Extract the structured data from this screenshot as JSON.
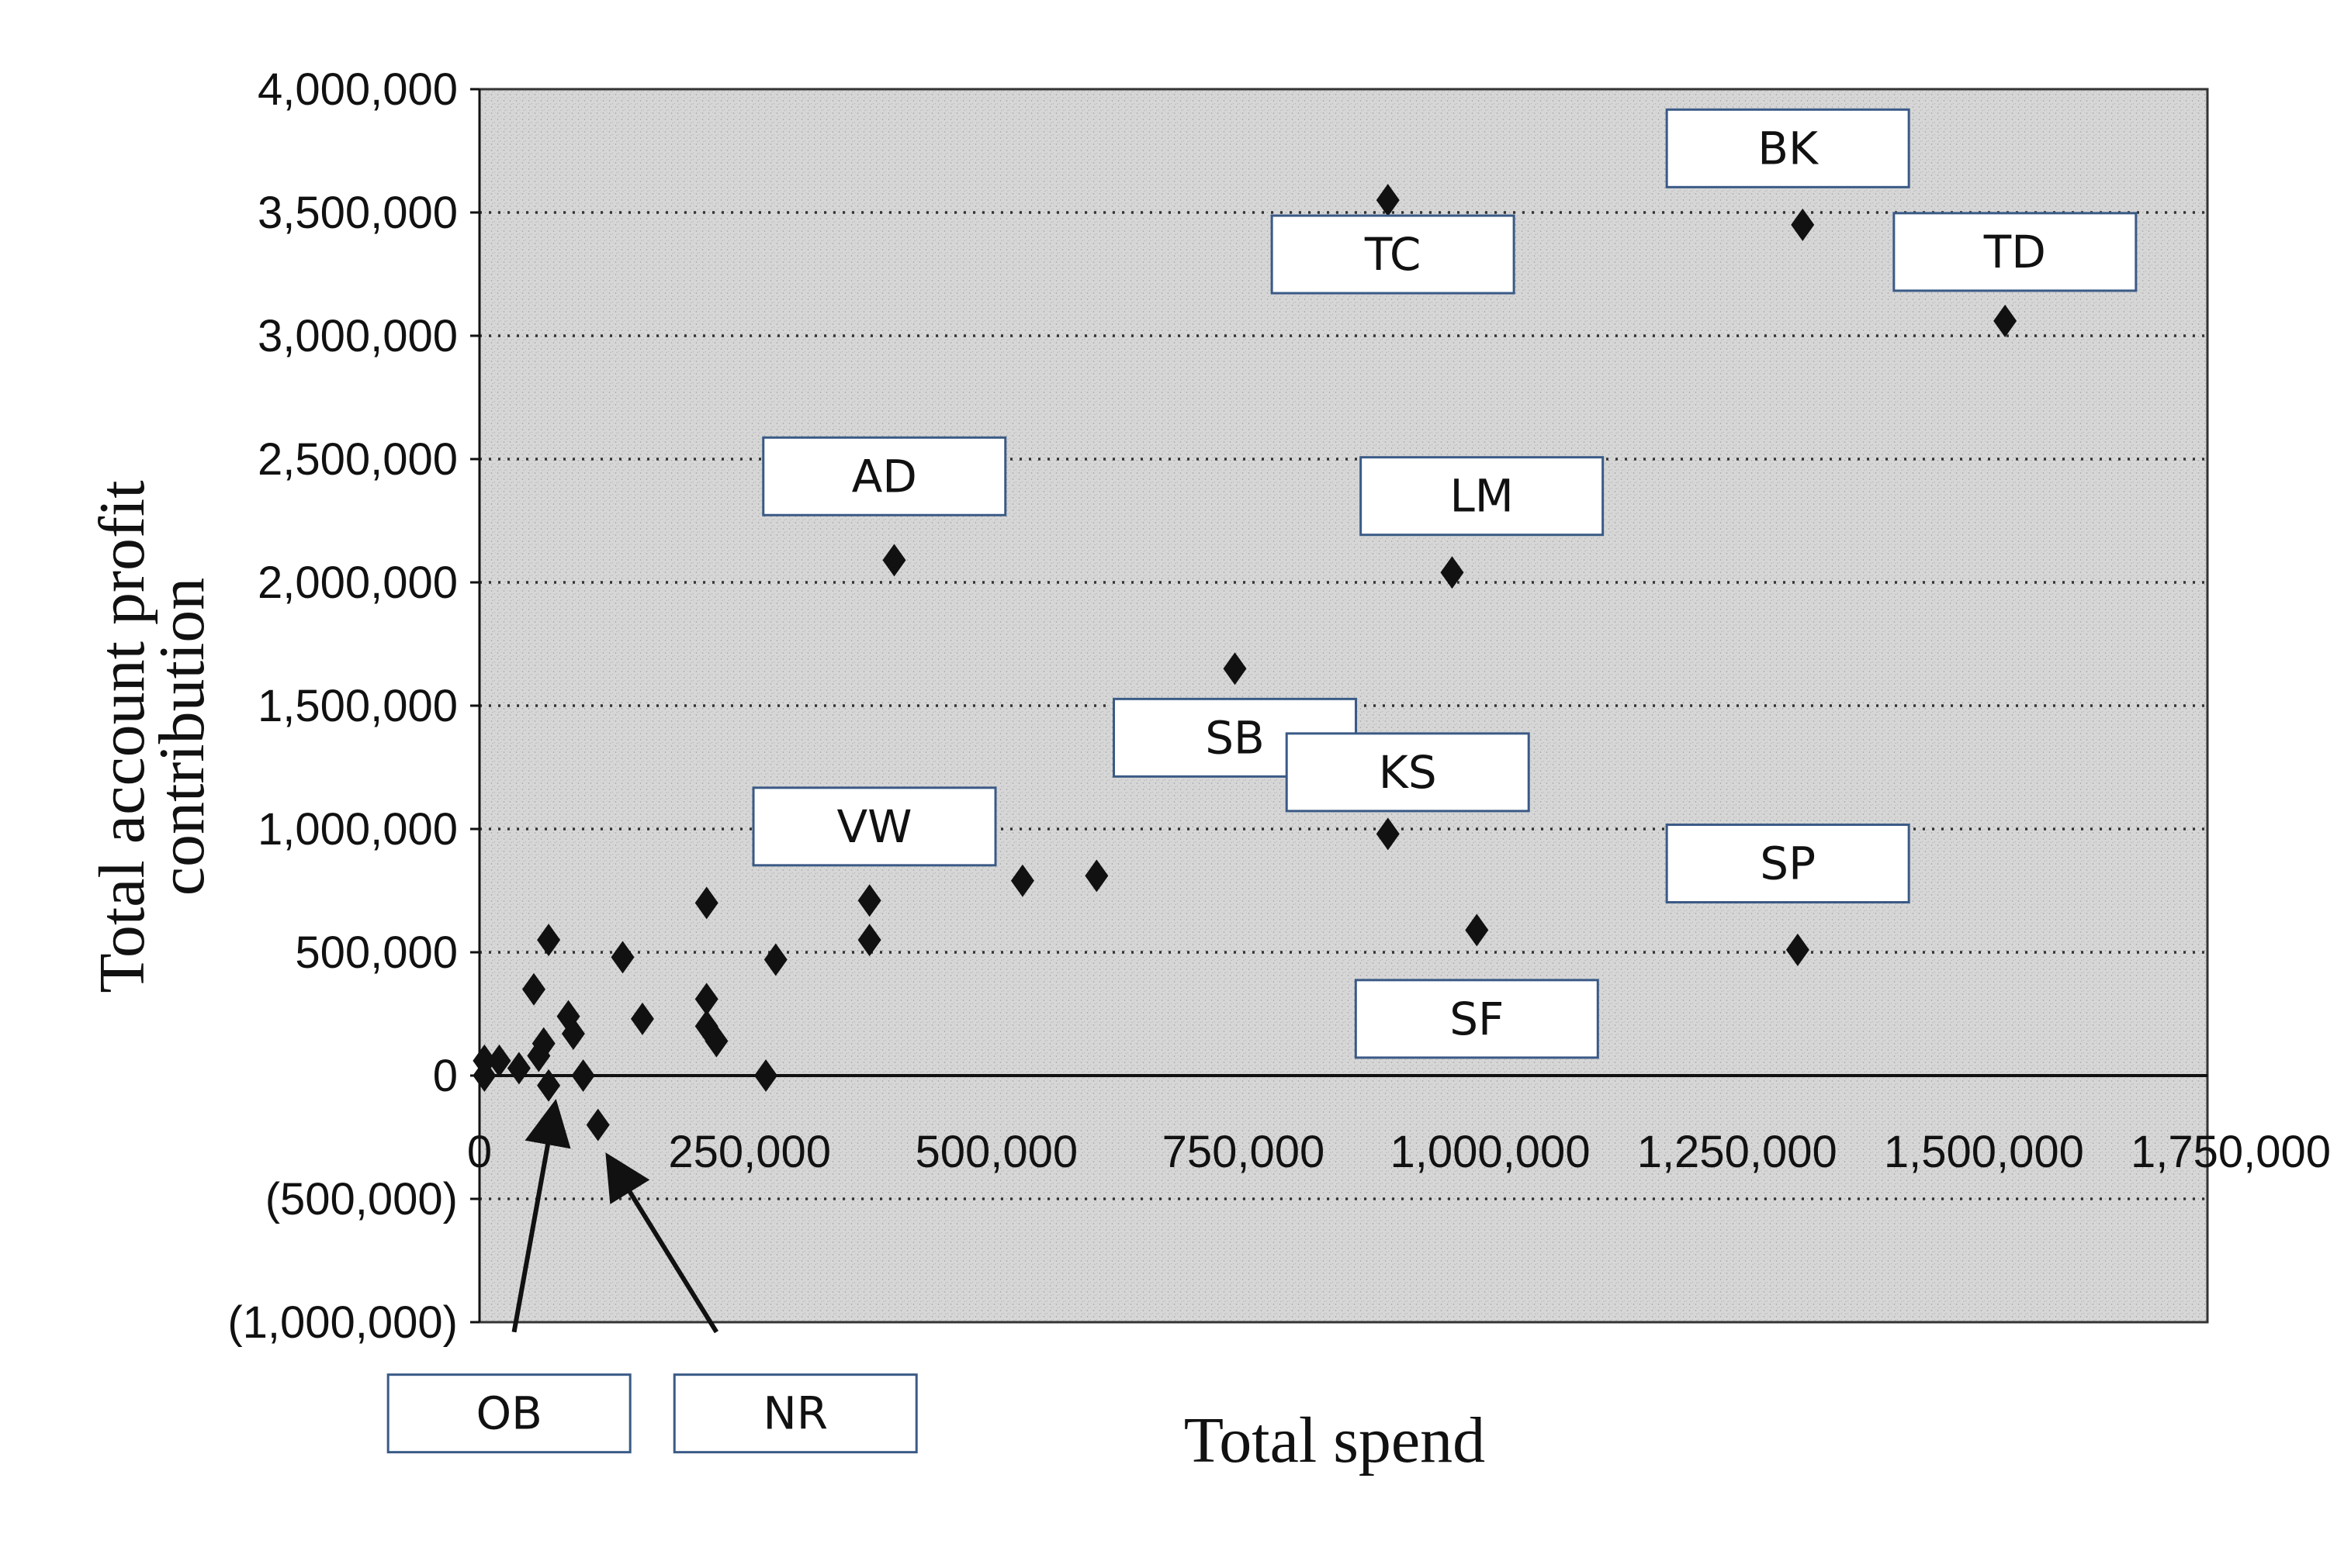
{
  "chart_data": {
    "type": "scatter",
    "title": "",
    "xlabel": "Total spend",
    "ylabel": "Total account profit contribution",
    "xlim": [
      0,
      1750000
    ],
    "ylim": [
      -1000000,
      4000000
    ],
    "x_ticks": [
      "0",
      "250,000",
      "500,000",
      "750,000",
      "1,000,000",
      "1,250,000",
      "1,500,000",
      "1,750,000"
    ],
    "y_ticks": [
      "4,000,000",
      "3,500,000",
      "3,000,000",
      "2,500,000",
      "2,000,000",
      "1,500,000",
      "1,000,000",
      "500,000",
      "0",
      "(500,000)",
      "(1,000,000)"
    ],
    "grid": "horizontal dotted",
    "marker": "diamond",
    "marker_color": "#111111",
    "points": [
      {
        "x": 5000,
        "y": 0
      },
      {
        "x": 5000,
        "y": 60000
      },
      {
        "x": 20000,
        "y": 60000
      },
      {
        "x": 40000,
        "y": 30000
      },
      {
        "x": 55000,
        "y": 350000
      },
      {
        "x": 60000,
        "y": 80000
      },
      {
        "x": 65000,
        "y": 130000
      },
      {
        "x": 70000,
        "y": 550000
      },
      {
        "x": 70000,
        "y": -40000
      },
      {
        "x": 90000,
        "y": 240000
      },
      {
        "x": 95000,
        "y": 170000
      },
      {
        "x": 105000,
        "y": 0
      },
      {
        "x": 120000,
        "y": -200000
      },
      {
        "x": 145000,
        "y": 480000
      },
      {
        "x": 165000,
        "y": 230000
      },
      {
        "x": 230000,
        "y": 700000
      },
      {
        "x": 230000,
        "y": 310000
      },
      {
        "x": 230000,
        "y": 200000
      },
      {
        "x": 240000,
        "y": 140000
      },
      {
        "x": 290000,
        "y": 0
      },
      {
        "x": 300000,
        "y": 470000
      },
      {
        "x": 395000,
        "y": 710000
      },
      {
        "x": 395000,
        "y": 550000
      },
      {
        "x": 420000,
        "y": 2090000
      },
      {
        "x": 550000,
        "y": 790000
      },
      {
        "x": 625000,
        "y": 810000
      },
      {
        "x": 765000,
        "y": 1650000
      },
      {
        "x": 920000,
        "y": 3550000
      },
      {
        "x": 920000,
        "y": 980000
      },
      {
        "x": 985000,
        "y": 2040000
      },
      {
        "x": 1010000,
        "y": 590000
      },
      {
        "x": 1335000,
        "y": 510000
      },
      {
        "x": 1340000,
        "y": 3450000
      },
      {
        "x": 1545000,
        "y": 3060000
      }
    ],
    "annotations": [
      {
        "text": "BK",
        "x": 1325000,
        "y": 3760000
      },
      {
        "text": "TC",
        "x": 925000,
        "y": 3330000
      },
      {
        "text": "TD",
        "x": 1555000,
        "y": 3340000
      },
      {
        "text": "AD",
        "x": 410000,
        "y": 2430000
      },
      {
        "text": "LM",
        "x": 1015000,
        "y": 2350000
      },
      {
        "text": "SB",
        "x": 765000,
        "y": 1370000
      },
      {
        "text": "KS",
        "x": 940000,
        "y": 1230000
      },
      {
        "text": "VW",
        "x": 400000,
        "y": 1010000
      },
      {
        "text": "SP",
        "x": 1325000,
        "y": 860000
      },
      {
        "text": "SF",
        "x": 1010000,
        "y": 230000
      },
      {
        "text": "OB",
        "x": 30000,
        "y": -1370000
      },
      {
        "text": "NR",
        "x": 320000,
        "y": -1370000
      }
    ],
    "arrows": [
      {
        "label": "OB",
        "from": [
          35000,
          -1040000
        ],
        "to": [
          75000,
          -150000
        ]
      },
      {
        "label": "NR",
        "from": [
          240000,
          -1040000
        ],
        "to": [
          135000,
          -360000
        ]
      }
    ]
  }
}
